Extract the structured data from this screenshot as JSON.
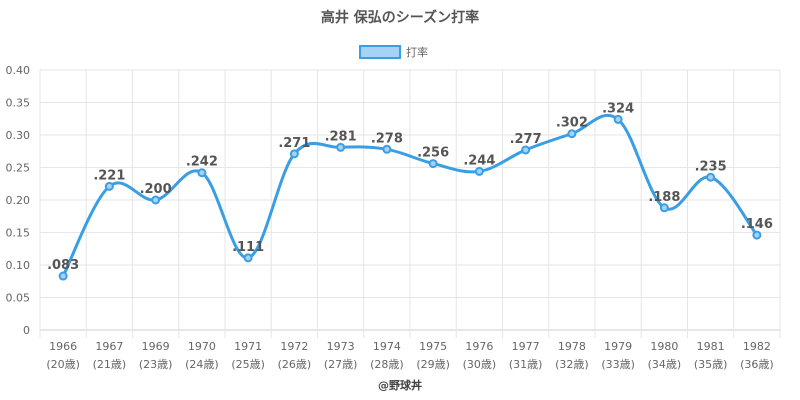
{
  "chart_data": {
    "type": "line",
    "title": "高井 保弘のシーズン打率",
    "legend": "打率",
    "legend_position": "top",
    "credit": "@野球丼",
    "color": "#3a9ee4",
    "fill_color": "#a6d2f5",
    "grid": true,
    "ylim": [
      0,
      0.4
    ],
    "yticks": [
      "0",
      "0.05",
      "0.10",
      "0.15",
      "0.20",
      "0.25",
      "0.30",
      "0.35",
      "0.40"
    ],
    "categories": [
      "1966",
      "1967",
      "1969",
      "1970",
      "1971",
      "1972",
      "1973",
      "1974",
      "1975",
      "1976",
      "1977",
      "1978",
      "1979",
      "1980",
      "1981",
      "1982"
    ],
    "ages": [
      "(20歳)",
      "(21歳)",
      "(23歳)",
      "(24歳)",
      "(25歳)",
      "(26歳)",
      "(27歳)",
      "(28歳)",
      "(29歳)",
      "(30歳)",
      "(31歳)",
      "(32歳)",
      "(33歳)",
      "(34歳)",
      "(35歳)",
      "(36歳)"
    ],
    "values": [
      0.083,
      0.221,
      0.2,
      0.242,
      0.111,
      0.271,
      0.281,
      0.278,
      0.256,
      0.244,
      0.277,
      0.302,
      0.324,
      0.188,
      0.235,
      0.146
    ],
    "labels": [
      ".083",
      ".221",
      ".200",
      ".242",
      ".111",
      ".271",
      ".281",
      ".278",
      ".256",
      ".244",
      ".277",
      ".302",
      ".324",
      ".188",
      ".235",
      ".146"
    ]
  }
}
